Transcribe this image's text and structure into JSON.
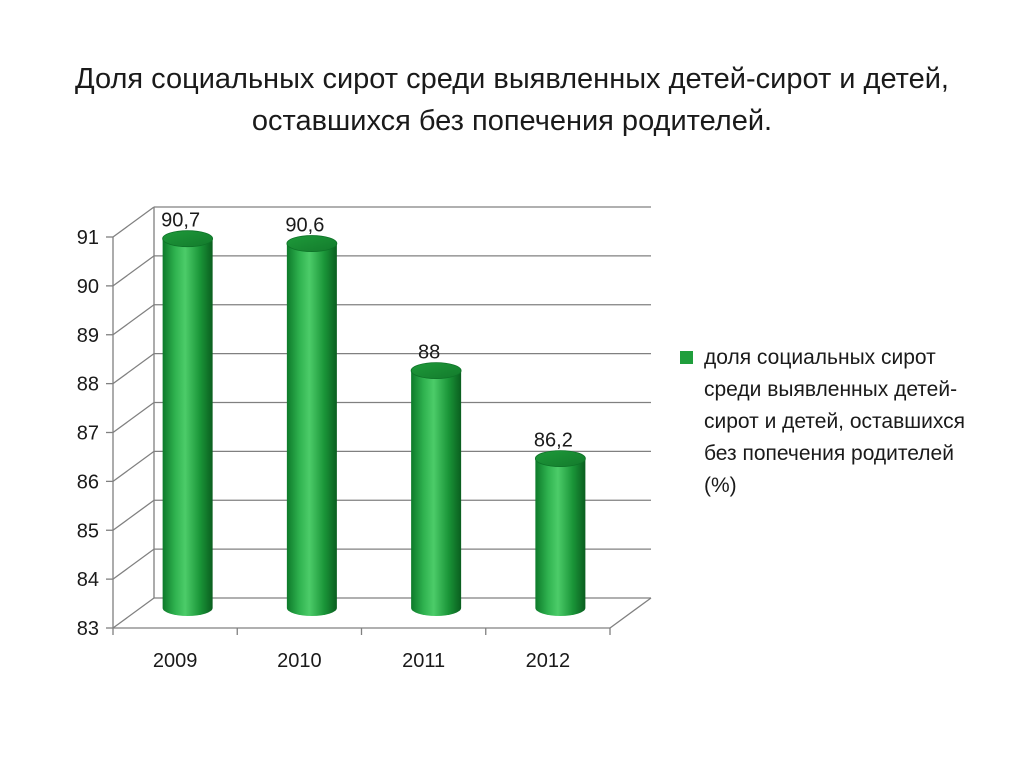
{
  "title": "Доля социальных сирот среди выявленных детей-сирот и детей, оставшихся без попечения родителей.",
  "chart_data": {
    "type": "bar",
    "title": "Доля социальных сирот среди выявленных детей-сирот и детей, оставшихся без попечения родителей.",
    "categories": [
      "2009",
      "2010",
      "2011",
      "2012"
    ],
    "series": [
      {
        "name": "доля социальных сирот среди выявленных детей-сирот и детей, оставшихся без попечения родителей (%)",
        "values": [
          90.7,
          90.6,
          88,
          86.2
        ],
        "labels": [
          "90,7",
          "90,6",
          "88",
          "86,2"
        ]
      }
    ],
    "ylim": [
      83,
      91
    ],
    "yticks": [
      83,
      84,
      85,
      86,
      87,
      88,
      89,
      90,
      91
    ],
    "grid": true,
    "legend": "right",
    "bar_shape": "cylinder-3d",
    "colors": {
      "bar": "#1f9e3c",
      "bar_dark": "#0b6a24",
      "bar_light": "#5fd27a",
      "grid": "#808080"
    }
  }
}
